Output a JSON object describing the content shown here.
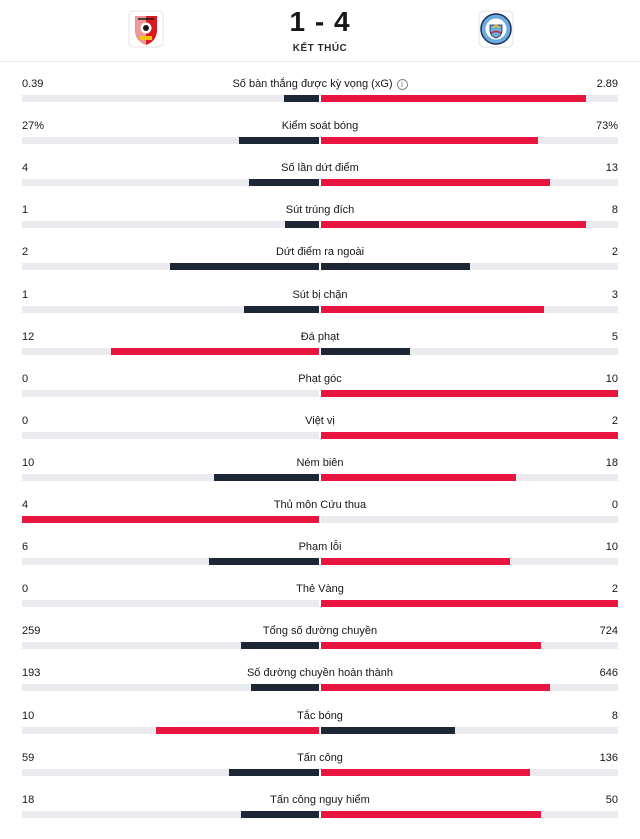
{
  "match": {
    "score": "1 - 4",
    "status": "KẾT THÚC",
    "home_crest": "southampton-crest-icon",
    "away_crest": "manchester-city-crest-icon"
  },
  "colors": {
    "leader": "#e8163f",
    "trailer": "#1d2634",
    "track": "#e9ebee"
  },
  "stats": [
    {
      "name": "Số bàn thắng được kỳ vọng (xG)",
      "home": "0.39",
      "away": "2.89",
      "info": "i",
      "home_share": 0.119,
      "away_share": 0.893,
      "leader": "away"
    },
    {
      "name": "Kiểm soát bóng",
      "home": "27%",
      "away": "73%",
      "home_share": 0.27,
      "away_share": 0.73,
      "leader": "away"
    },
    {
      "name": "Số lần dứt điểm",
      "home": "4",
      "away": "13",
      "home_share": 0.235,
      "away_share": 0.77,
      "leader": "away"
    },
    {
      "name": "Sút trúng đích",
      "home": "1",
      "away": "8",
      "home_share": 0.115,
      "away_share": 0.893,
      "leader": "away"
    },
    {
      "name": "Dứt điểm ra ngoài",
      "home": "2",
      "away": "2",
      "home_share": 0.5,
      "away_share": 0.5,
      "leader": "none"
    },
    {
      "name": "Sút bị chặn",
      "home": "1",
      "away": "3",
      "home_share": 0.252,
      "away_share": 0.75,
      "leader": "away"
    },
    {
      "name": "Đá phạt",
      "home": "12",
      "away": "5",
      "home_share": 0.7,
      "away_share": 0.3,
      "leader": "home"
    },
    {
      "name": "Phạt góc",
      "home": "0",
      "away": "10",
      "home_share": 0,
      "away_share": 1,
      "leader": "away"
    },
    {
      "name": "Việt vị",
      "home": "0",
      "away": "2",
      "home_share": 0,
      "away_share": 1,
      "leader": "away"
    },
    {
      "name": "Ném biên",
      "home": "10",
      "away": "18",
      "home_share": 0.355,
      "away_share": 0.655,
      "leader": "away"
    },
    {
      "name": "Thủ môn Cứu thua",
      "home": "4",
      "away": "0",
      "home_share": 1,
      "away_share": 0,
      "leader": "home"
    },
    {
      "name": "Phạm lỗi",
      "home": "6",
      "away": "10",
      "home_share": 0.372,
      "away_share": 0.635,
      "leader": "away"
    },
    {
      "name": "Thẻ Vàng",
      "home": "0",
      "away": "2",
      "home_share": 0,
      "away_share": 1,
      "leader": "away"
    },
    {
      "name": "Tổng số đường chuyền",
      "home": "259",
      "away": "724",
      "home_share": 0.262,
      "away_share": 0.74,
      "leader": "away"
    },
    {
      "name": "Số đường chuyền hoàn thành",
      "home": "193",
      "away": "646",
      "home_share": 0.23,
      "away_share": 0.77,
      "leader": "away"
    },
    {
      "name": "Tắc bóng",
      "home": "10",
      "away": "8",
      "home_share": 0.55,
      "away_share": 0.45,
      "leader": "home"
    },
    {
      "name": "Tấn công",
      "home": "59",
      "away": "136",
      "home_share": 0.302,
      "away_share": 0.703,
      "leader": "away"
    },
    {
      "name": "Tấn công nguy hiểm",
      "home": "18",
      "away": "50",
      "home_share": 0.262,
      "away_share": 0.74,
      "leader": "away"
    }
  ]
}
